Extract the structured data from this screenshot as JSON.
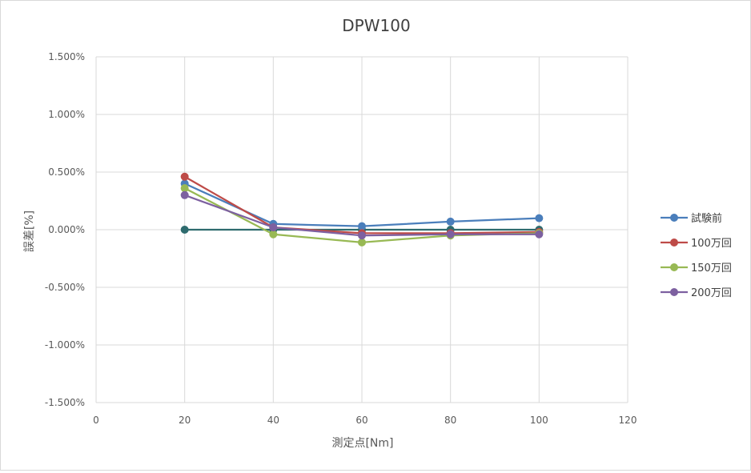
{
  "chart_data": {
    "type": "line",
    "title": "DPW100",
    "xlabel": "測定点[Nm]",
    "ylabel": "誤差[%]",
    "xlim": [
      0,
      120
    ],
    "xticks": [
      0,
      20,
      40,
      60,
      80,
      100,
      120
    ],
    "xtick_labels": [
      "0",
      "20",
      "40",
      "60",
      "80",
      "100",
      "120"
    ],
    "ylim": [
      -1.5,
      1.5
    ],
    "yticks": [
      1.5,
      1.0,
      0.5,
      0.0,
      -0.5,
      -1.0,
      -1.5
    ],
    "ytick_labels": [
      "1.500%",
      "1.000%",
      "0.500%",
      "0.000%",
      "-0.500%",
      "-1.000%",
      "-1.500%"
    ],
    "grid": true,
    "legend_position": "right",
    "series": [
      {
        "name": "試験前",
        "color": "#4a7ebb",
        "x": [
          20,
          40,
          60,
          80,
          100
        ],
        "y": [
          0.4,
          0.05,
          0.03,
          0.07,
          0.1
        ]
      },
      {
        "name": "100万回",
        "color": "#be4b48",
        "x": [
          20,
          40,
          60,
          80,
          100
        ],
        "y": [
          0.46,
          0.02,
          -0.03,
          -0.03,
          -0.02
        ]
      },
      {
        "name": "150万回",
        "color": "#98b954",
        "x": [
          20,
          40,
          60,
          80,
          100
        ],
        "y": [
          0.36,
          -0.04,
          -0.11,
          -0.05,
          -0.03
        ]
      },
      {
        "name": "200万回",
        "color": "#7d60a0",
        "x": [
          20,
          40,
          60,
          80,
          100
        ],
        "y": [
          0.3,
          0.02,
          -0.05,
          -0.04,
          -0.04
        ]
      }
    ],
    "baseline": {
      "color": "#2e6b6e",
      "x": [
        20,
        40,
        60,
        80,
        100
      ],
      "y": [
        0,
        0,
        0,
        0,
        0
      ]
    }
  }
}
